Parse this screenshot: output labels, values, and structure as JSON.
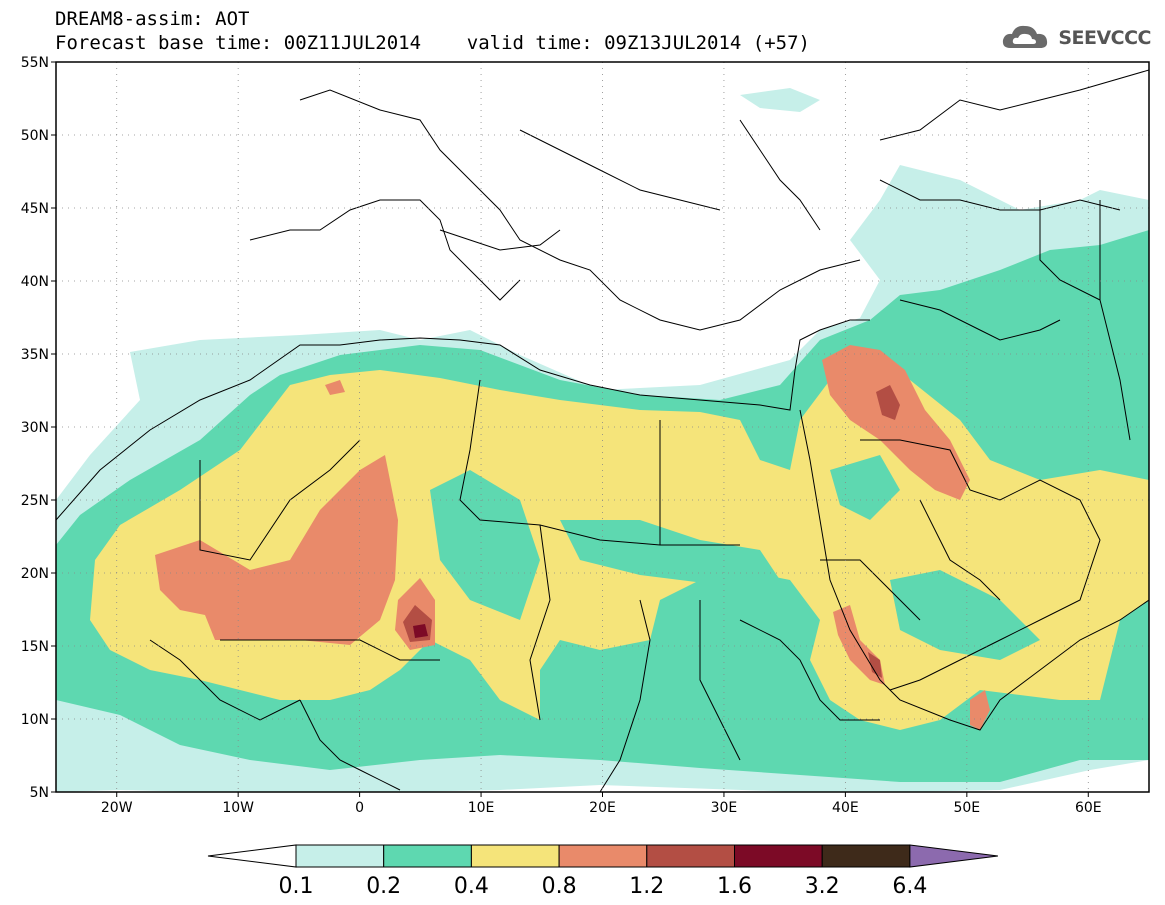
{
  "header": {
    "line1": "DREAM8-assim: AOT",
    "line2": "Forecast base time: 00Z11JUL2014    valid time: 09Z13JUL2014 (+57)"
  },
  "logo": {
    "text": "SEEVCCC",
    "icon": "cloud-icon"
  },
  "map": {
    "lat_labels": [
      "55N",
      "50N",
      "45N",
      "40N",
      "35N",
      "30N",
      "25N",
      "20N",
      "15N",
      "10N",
      "5N"
    ],
    "lon_labels": [
      "20W",
      "10W",
      "0",
      "10E",
      "20E",
      "30E",
      "40E",
      "50E",
      "60E"
    ]
  },
  "colorbar": {
    "tick_labels": [
      "0.1",
      "0.2",
      "0.4",
      "0.8",
      "1.2",
      "1.6",
      "3.2",
      "6.4"
    ],
    "colors": [
      "#ffffff",
      "#c6efe9",
      "#5ed8b0",
      "#f5e47a",
      "#e98a6a",
      "#b34e44",
      "#7c0a26",
      "#3e2a1a",
      "#8c6aae"
    ]
  },
  "colors": {
    "c01": "#c6efe9",
    "c02": "#5ed8b0",
    "c04": "#f5e47a",
    "c08": "#e98a6a",
    "c12": "#b34e44",
    "c16": "#7c0a26"
  }
}
